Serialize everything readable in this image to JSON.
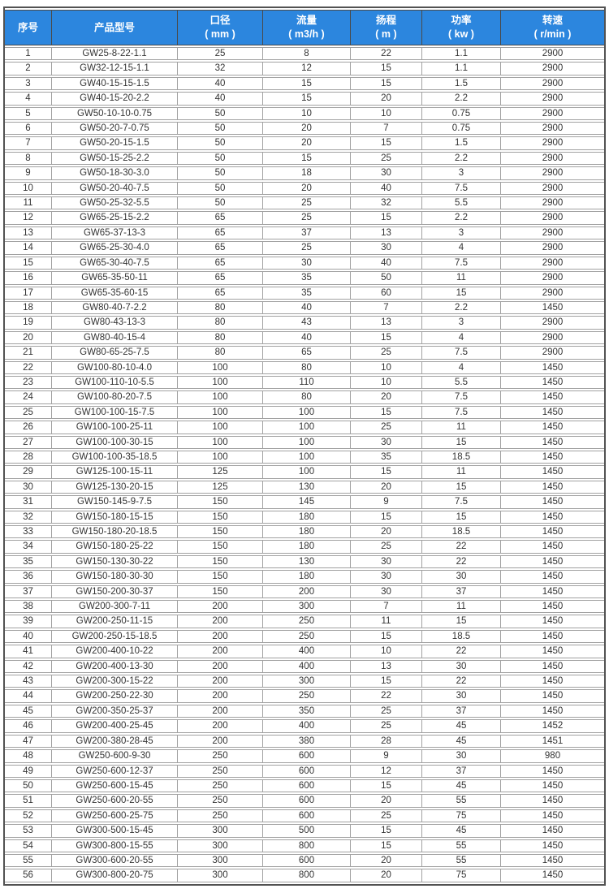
{
  "colors": {
    "header_bg": "#2C86DE",
    "header_text": "#FFFFFF",
    "body_text": "#333333",
    "inner_border": "#A1A1A1",
    "header_border": "#4A4A4A",
    "outer_border": "#525252",
    "page_bg": "#FFFFFF"
  },
  "table": {
    "columns": [
      {
        "key": "index",
        "line1": "序号",
        "line2": ""
      },
      {
        "key": "model",
        "line1": "产品型号",
        "line2": ""
      },
      {
        "key": "diameter",
        "line1": "口径",
        "line2": "( mm )"
      },
      {
        "key": "flow",
        "line1": "流量",
        "line2": "( m3/h )"
      },
      {
        "key": "head",
        "line1": "扬程",
        "line2": "( m )"
      },
      {
        "key": "power",
        "line1": "功率",
        "line2": "( kw )"
      },
      {
        "key": "speed",
        "line1": "转速",
        "line2": "( r/min )"
      }
    ],
    "rows": [
      [
        "1",
        "GW25-8-22-1.1",
        "25",
        "8",
        "22",
        "1.1",
        "2900"
      ],
      [
        "2",
        "GW32-12-15-1.1",
        "32",
        "12",
        "15",
        "1.1",
        "2900"
      ],
      [
        "3",
        "GW40-15-15-1.5",
        "40",
        "15",
        "15",
        "1.5",
        "2900"
      ],
      [
        "4",
        "GW40-15-20-2.2",
        "40",
        "15",
        "20",
        "2.2",
        "2900"
      ],
      [
        "5",
        "GW50-10-10-0.75",
        "50",
        "10",
        "10",
        "0.75",
        "2900"
      ],
      [
        "6",
        "GW50-20-7-0.75",
        "50",
        "20",
        "7",
        "0.75",
        "2900"
      ],
      [
        "7",
        "GW50-20-15-1.5",
        "50",
        "20",
        "15",
        "1.5",
        "2900"
      ],
      [
        "8",
        "GW50-15-25-2.2",
        "50",
        "15",
        "25",
        "2.2",
        "2900"
      ],
      [
        "9",
        "GW50-18-30-3.0",
        "50",
        "18",
        "30",
        "3",
        "2900"
      ],
      [
        "10",
        "GW50-20-40-7.5",
        "50",
        "20",
        "40",
        "7.5",
        "2900"
      ],
      [
        "11",
        "GW50-25-32-5.5",
        "50",
        "25",
        "32",
        "5.5",
        "2900"
      ],
      [
        "12",
        "GW65-25-15-2.2",
        "65",
        "25",
        "15",
        "2.2",
        "2900"
      ],
      [
        "13",
        "GW65-37-13-3",
        "65",
        "37",
        "13",
        "3",
        "2900"
      ],
      [
        "14",
        "GW65-25-30-4.0",
        "65",
        "25",
        "30",
        "4",
        "2900"
      ],
      [
        "15",
        "GW65-30-40-7.5",
        "65",
        "30",
        "40",
        "7.5",
        "2900"
      ],
      [
        "16",
        "GW65-35-50-11",
        "65",
        "35",
        "50",
        "11",
        "2900"
      ],
      [
        "17",
        "GW65-35-60-15",
        "65",
        "35",
        "60",
        "15",
        "2900"
      ],
      [
        "18",
        "GW80-40-7-2.2",
        "80",
        "40",
        "7",
        "2.2",
        "1450"
      ],
      [
        "19",
        "GW80-43-13-3",
        "80",
        "43",
        "13",
        "3",
        "2900"
      ],
      [
        "20",
        "GW80-40-15-4",
        "80",
        "40",
        "15",
        "4",
        "2900"
      ],
      [
        "21",
        "GW80-65-25-7.5",
        "80",
        "65",
        "25",
        "7.5",
        "2900"
      ],
      [
        "22",
        "GW100-80-10-4.0",
        "100",
        "80",
        "10",
        "4",
        "1450"
      ],
      [
        "23",
        "GW100-110-10-5.5",
        "100",
        "110",
        "10",
        "5.5",
        "1450"
      ],
      [
        "24",
        "GW100-80-20-7.5",
        "100",
        "80",
        "20",
        "7.5",
        "1450"
      ],
      [
        "25",
        "GW100-100-15-7.5",
        "100",
        "100",
        "15",
        "7.5",
        "1450"
      ],
      [
        "26",
        "GW100-100-25-11",
        "100",
        "100",
        "25",
        "11",
        "1450"
      ],
      [
        "27",
        "GW100-100-30-15",
        "100",
        "100",
        "30",
        "15",
        "1450"
      ],
      [
        "28",
        "GW100-100-35-18.5",
        "100",
        "100",
        "35",
        "18.5",
        "1450"
      ],
      [
        "29",
        "GW125-100-15-11",
        "125",
        "100",
        "15",
        "11",
        "1450"
      ],
      [
        "30",
        "GW125-130-20-15",
        "125",
        "130",
        "20",
        "15",
        "1450"
      ],
      [
        "31",
        "GW150-145-9-7.5",
        "150",
        "145",
        "9",
        "7.5",
        "1450"
      ],
      [
        "32",
        "GW150-180-15-15",
        "150",
        "180",
        "15",
        "15",
        "1450"
      ],
      [
        "33",
        "GW150-180-20-18.5",
        "150",
        "180",
        "20",
        "18.5",
        "1450"
      ],
      [
        "34",
        "GW150-180-25-22",
        "150",
        "180",
        "25",
        "22",
        "1450"
      ],
      [
        "35",
        "GW150-130-30-22",
        "150",
        "130",
        "30",
        "22",
        "1450"
      ],
      [
        "36",
        "GW150-180-30-30",
        "150",
        "180",
        "30",
        "30",
        "1450"
      ],
      [
        "37",
        "GW150-200-30-37",
        "150",
        "200",
        "30",
        "37",
        "1450"
      ],
      [
        "38",
        "GW200-300-7-11",
        "200",
        "300",
        "7",
        "11",
        "1450"
      ],
      [
        "39",
        "GW200-250-11-15",
        "200",
        "250",
        "11",
        "15",
        "1450"
      ],
      [
        "40",
        "GW200-250-15-18.5",
        "200",
        "250",
        "15",
        "18.5",
        "1450"
      ],
      [
        "41",
        "GW200-400-10-22",
        "200",
        "400",
        "10",
        "22",
        "1450"
      ],
      [
        "42",
        "GW200-400-13-30",
        "200",
        "400",
        "13",
        "30",
        "1450"
      ],
      [
        "43",
        "GW200-300-15-22",
        "200",
        "300",
        "15",
        "22",
        "1450"
      ],
      [
        "44",
        "GW200-250-22-30",
        "200",
        "250",
        "22",
        "30",
        "1450"
      ],
      [
        "45",
        "GW200-350-25-37",
        "200",
        "350",
        "25",
        "37",
        "1450"
      ],
      [
        "46",
        "GW200-400-25-45",
        "200",
        "400",
        "25",
        "45",
        "1452"
      ],
      [
        "47",
        "GW200-380-28-45",
        "200",
        "380",
        "28",
        "45",
        "1451"
      ],
      [
        "48",
        "GW250-600-9-30",
        "250",
        "600",
        "9",
        "30",
        "980"
      ],
      [
        "49",
        "GW250-600-12-37",
        "250",
        "600",
        "12",
        "37",
        "1450"
      ],
      [
        "50",
        "GW250-600-15-45",
        "250",
        "600",
        "15",
        "45",
        "1450"
      ],
      [
        "51",
        "GW250-600-20-55",
        "250",
        "600",
        "20",
        "55",
        "1450"
      ],
      [
        "52",
        "GW250-600-25-75",
        "250",
        "600",
        "25",
        "75",
        "1450"
      ],
      [
        "53",
        "GW300-500-15-45",
        "300",
        "500",
        "15",
        "45",
        "1450"
      ],
      [
        "54",
        "GW300-800-15-55",
        "300",
        "800",
        "15",
        "55",
        "1450"
      ],
      [
        "55",
        "GW300-600-20-55",
        "300",
        "600",
        "20",
        "55",
        "1450"
      ],
      [
        "56",
        "GW300-800-20-75",
        "300",
        "800",
        "20",
        "75",
        "1450"
      ]
    ]
  }
}
